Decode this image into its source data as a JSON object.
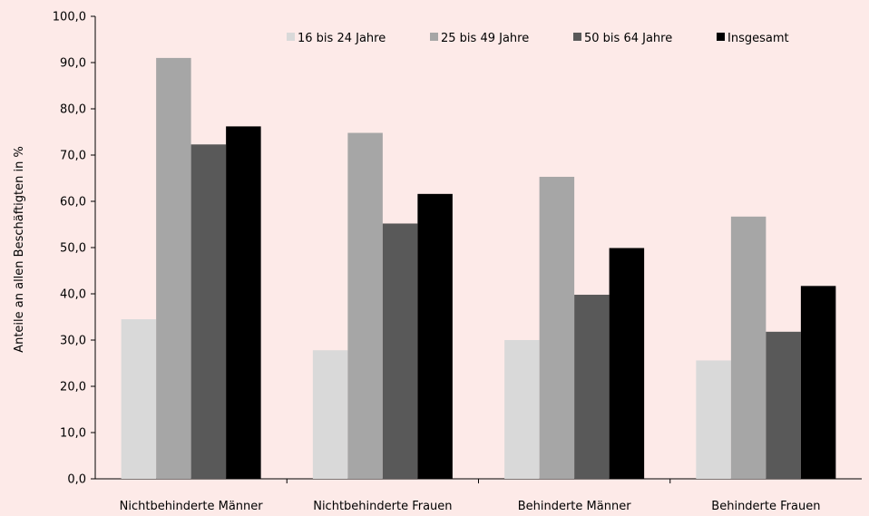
{
  "chart_data": {
    "type": "bar",
    "title": "",
    "xlabel": "",
    "ylabel": "Anteile an allen Beschäftigten in %",
    "ylim": [
      0,
      100
    ],
    "ytick_step": 10,
    "grid": false,
    "legend_position": "top",
    "categories": [
      "Nichtbehinderte Männer",
      "Nichtbehinderte Frauen",
      "Behinderte Männer",
      "Behinderte Frauen"
    ],
    "series": [
      {
        "name": "16 bis 24 Jahre",
        "color": "#d9d9d9",
        "values": [
          34.5,
          27.8,
          30.0,
          25.6
        ]
      },
      {
        "name": "25 bis 49 Jahre",
        "color": "#a6a6a6",
        "values": [
          91.0,
          74.8,
          65.3,
          56.7
        ]
      },
      {
        "name": "50 bis 64 Jahre",
        "color": "#595959",
        "values": [
          72.3,
          55.2,
          39.8,
          31.8
        ]
      },
      {
        "name": "Insgesamt",
        "color": "#000000",
        "values": [
          76.2,
          61.6,
          49.9,
          41.7
        ]
      }
    ]
  }
}
